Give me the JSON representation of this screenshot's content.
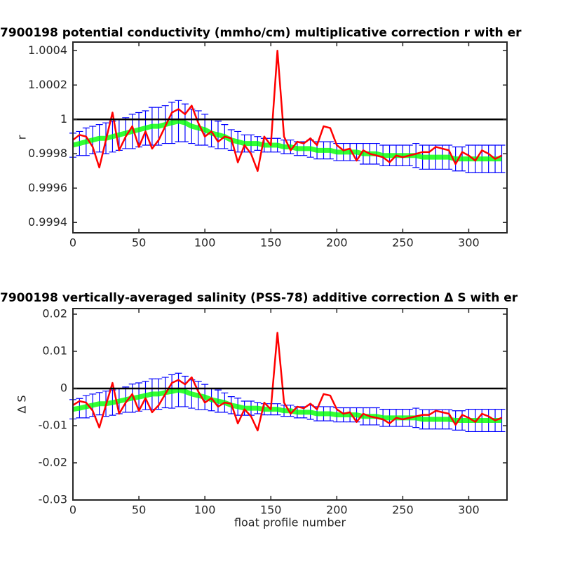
{
  "chart_data": [
    {
      "type": "line",
      "title": "7900198 potential conductivity (mmho/cm) multiplicative correction r with er",
      "ylabel": "r",
      "x": [
        0,
        5,
        10,
        15,
        20,
        25,
        30,
        35,
        40,
        45,
        50,
        55,
        60,
        65,
        70,
        75,
        80,
        85,
        90,
        95,
        100,
        105,
        110,
        115,
        120,
        125,
        130,
        135,
        140,
        145,
        150,
        155,
        160,
        165,
        170,
        175,
        180,
        185,
        190,
        195,
        200,
        205,
        210,
        215,
        220,
        225,
        230,
        235,
        240,
        245,
        250,
        255,
        260,
        265,
        270,
        275,
        280,
        285,
        290,
        295,
        300,
        305,
        310,
        315,
        320,
        325
      ],
      "xlim": [
        0,
        329
      ],
      "xticks": [
        0,
        50,
        100,
        150,
        200,
        250,
        300
      ],
      "ylim": [
        0.99934,
        1.00045
      ],
      "yticks": [
        0.9994,
        0.9996,
        0.9998,
        1,
        1.0002,
        1.0004
      ],
      "hline": 1,
      "hline_color": "#000000",
      "series": [
        {
          "color": "#0000ff",
          "line_color": "#00ff00",
          "values": [
            0.99985,
            0.99986,
            0.99987,
            0.99988,
            0.99989,
            0.99989,
            0.9999,
            0.99991,
            0.99992,
            0.99993,
            0.99994,
            0.99995,
            0.99996,
            0.99996,
            0.99997,
            0.99998,
            0.99999,
            0.99998,
            0.99996,
            0.99995,
            0.99994,
            0.99992,
            0.99991,
            0.9999,
            0.99988,
            0.99987,
            0.99986,
            0.99986,
            0.99986,
            0.99985,
            0.99985,
            0.99985,
            0.99984,
            0.99984,
            0.99983,
            0.99983,
            0.99983,
            0.99982,
            0.99982,
            0.99982,
            0.99981,
            0.99981,
            0.99981,
            0.99981,
            0.9998,
            0.9998,
            0.9998,
            0.99979,
            0.99979,
            0.99979,
            0.99979,
            0.99979,
            0.99979,
            0.99978,
            0.99978,
            0.99978,
            0.99978,
            0.99978,
            0.99977,
            0.99977,
            0.99977,
            0.99977,
            0.99977,
            0.99977,
            0.99977,
            0.99977
          ],
          "errors": [
            7e-05,
            7e-05,
            8e-05,
            8e-05,
            8e-05,
            9e-05,
            9e-05,
            9e-05,
            9e-05,
            0.0001,
            0.0001,
            0.0001,
            0.00011,
            0.00011,
            0.00011,
            0.00012,
            0.00012,
            0.00011,
            0.0001,
            0.0001,
            9e-05,
            8e-05,
            8e-05,
            7e-05,
            6e-05,
            6e-05,
            5e-05,
            5e-05,
            4e-05,
            4e-05,
            4e-05,
            4e-05,
            4e-05,
            4e-05,
            4e-05,
            4e-05,
            5e-05,
            5e-05,
            5e-05,
            5e-05,
            5e-05,
            5e-05,
            5e-05,
            5e-05,
            6e-05,
            6e-05,
            6e-05,
            6e-05,
            6e-05,
            6e-05,
            6e-05,
            6e-05,
            7e-05,
            7e-05,
            7e-05,
            7e-05,
            7e-05,
            7e-05,
            7e-05,
            7e-05,
            8e-05,
            8e-05,
            8e-05,
            8e-05,
            8e-05,
            8e-05
          ]
        },
        {
          "color": "#ff0000",
          "values": [
            0.99988,
            0.99991,
            0.9999,
            0.99984,
            0.99972,
            0.99988,
            1.00004,
            0.99982,
            0.9999,
            0.99996,
            0.99984,
            0.99993,
            0.99983,
            0.99988,
            0.99996,
            1.00004,
            1.00006,
            1.00003,
            1.00008,
            0.99998,
            0.9999,
            0.99993,
            0.99987,
            0.9999,
            0.99989,
            0.99975,
            0.99985,
            0.9998,
            0.9997,
            0.9999,
            0.99985,
            1.0004,
            0.9999,
            0.99982,
            0.99987,
            0.99986,
            0.99989,
            0.99985,
            0.99996,
            0.99995,
            0.99985,
            0.99982,
            0.99983,
            0.99976,
            0.99982,
            0.9998,
            0.99979,
            0.99978,
            0.99975,
            0.99979,
            0.99978,
            0.99979,
            0.9998,
            0.99981,
            0.99981,
            0.99984,
            0.99983,
            0.99982,
            0.99974,
            0.99981,
            0.99979,
            0.99976,
            0.99982,
            0.9998,
            0.99977,
            0.99979
          ]
        }
      ]
    },
    {
      "type": "line",
      "title": "7900198 vertically-averaged salinity (PSS-78) additive correction Δ S with er",
      "ylabel": "Δ S",
      "xlabel": "float profile number",
      "x": [
        0,
        5,
        10,
        15,
        20,
        25,
        30,
        35,
        40,
        45,
        50,
        55,
        60,
        65,
        70,
        75,
        80,
        85,
        90,
        95,
        100,
        105,
        110,
        115,
        120,
        125,
        130,
        135,
        140,
        145,
        150,
        155,
        160,
        165,
        170,
        175,
        180,
        185,
        190,
        195,
        200,
        205,
        210,
        215,
        220,
        225,
        230,
        235,
        240,
        245,
        250,
        255,
        260,
        265,
        270,
        275,
        280,
        285,
        290,
        295,
        300,
        305,
        310,
        315,
        320,
        325
      ],
      "xlim": [
        0,
        329
      ],
      "xticks": [
        0,
        50,
        100,
        150,
        200,
        250,
        300
      ],
      "ylim": [
        -0.03,
        0.0215
      ],
      "yticks": [
        -0.03,
        -0.02,
        -0.01,
        0,
        0.01,
        0.02
      ],
      "hline": 0,
      "hline_color": "#000000",
      "series": [
        {
          "color": "#0000ff",
          "line_color": "#00ff00",
          "values": [
            -0.0056,
            -0.0053,
            -0.0049,
            -0.0045,
            -0.0041,
            -0.0041,
            -0.0038,
            -0.0034,
            -0.003,
            -0.0026,
            -0.0023,
            -0.0019,
            -0.0015,
            -0.0015,
            -0.0011,
            -0.0008,
            -0.0004,
            -0.0008,
            -0.0015,
            -0.0019,
            -0.0023,
            -0.003,
            -0.0034,
            -0.0038,
            -0.0045,
            -0.0049,
            -0.0053,
            -0.0053,
            -0.0053,
            -0.0056,
            -0.0056,
            -0.0056,
            -0.006,
            -0.006,
            -0.0064,
            -0.0064,
            -0.0064,
            -0.0068,
            -0.0068,
            -0.0068,
            -0.0071,
            -0.0071,
            -0.0071,
            -0.0071,
            -0.0075,
            -0.0075,
            -0.0075,
            -0.0079,
            -0.0079,
            -0.0079,
            -0.0079,
            -0.0079,
            -0.0079,
            -0.0083,
            -0.0083,
            -0.0083,
            -0.0083,
            -0.0083,
            -0.0086,
            -0.0086,
            -0.0086,
            -0.0086,
            -0.0086,
            -0.0086,
            -0.0086,
            -0.0086
          ],
          "errors": [
            0.0026,
            0.0026,
            0.003,
            0.003,
            0.003,
            0.0034,
            0.0034,
            0.0034,
            0.0034,
            0.0038,
            0.0038,
            0.0038,
            0.0041,
            0.0041,
            0.0041,
            0.0045,
            0.0045,
            0.0041,
            0.0038,
            0.0038,
            0.0034,
            0.003,
            0.003,
            0.0026,
            0.0023,
            0.0023,
            0.0019,
            0.0019,
            0.0015,
            0.0015,
            0.0015,
            0.0015,
            0.0015,
            0.0015,
            0.0015,
            0.0015,
            0.0019,
            0.0019,
            0.0019,
            0.0019,
            0.0019,
            0.0019,
            0.0019,
            0.0019,
            0.0023,
            0.0023,
            0.0023,
            0.0023,
            0.0023,
            0.0023,
            0.0023,
            0.0023,
            0.0026,
            0.0026,
            0.0026,
            0.0026,
            0.0026,
            0.0026,
            0.0026,
            0.0026,
            0.003,
            0.003,
            0.003,
            0.003,
            0.003,
            0.003
          ]
        },
        {
          "color": "#ff0000",
          "values": [
            -0.0045,
            -0.0034,
            -0.0038,
            -0.006,
            -0.0105,
            -0.0045,
            0.0015,
            -0.0068,
            -0.0038,
            -0.0015,
            -0.006,
            -0.0026,
            -0.0064,
            -0.0045,
            -0.0015,
            0.0015,
            0.0023,
            0.0011,
            0.003,
            -0.0008,
            -0.0038,
            -0.0026,
            -0.0049,
            -0.0038,
            -0.0041,
            -0.0094,
            -0.0056,
            -0.0075,
            -0.0113,
            -0.0038,
            -0.0056,
            0.015,
            -0.0038,
            -0.0068,
            -0.0049,
            -0.0053,
            -0.0041,
            -0.0056,
            -0.0015,
            -0.0019,
            -0.0056,
            -0.0068,
            -0.0064,
            -0.009,
            -0.0068,
            -0.0075,
            -0.0079,
            -0.0083,
            -0.0094,
            -0.0079,
            -0.0083,
            -0.0079,
            -0.0075,
            -0.0071,
            -0.0071,
            -0.006,
            -0.0064,
            -0.0068,
            -0.0098,
            -0.0071,
            -0.0079,
            -0.009,
            -0.0068,
            -0.0075,
            -0.0086,
            -0.0079
          ]
        }
      ]
    }
  ]
}
